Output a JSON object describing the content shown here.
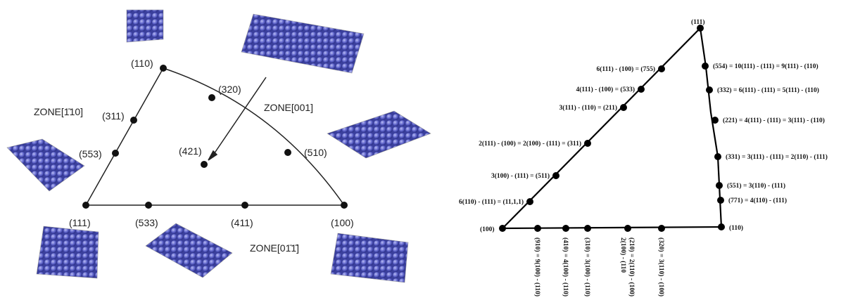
{
  "left": {
    "vertices": [
      "(110)",
      "(111)",
      "(100)"
    ],
    "points": [
      "(320)",
      "(311)",
      "(553)",
      "(510)",
      "(421)",
      "(533)",
      "(411)"
    ],
    "zones": [
      "ZONE[1̄10]",
      "ZONE[001]",
      "ZONE[01̄1̄]"
    ]
  },
  "right": {
    "vertices": [
      "(111)",
      "(100)",
      "(110)"
    ],
    "left_edge": [
      "6(110) - (111) = (11,1,1)",
      "3(100) - (111) = (511)",
      "2(111) - (100) = 2(100) - (111) = (311)",
      "3(111) - (110) = (211)",
      "4(111) - (100) = (533)",
      "6(111) - (100) = (755)"
    ],
    "right_edge": [
      "(554) = 10(111) - (111) = 9(111) - (110)",
      "(332) = 6(111) - (111) = 5(111) - (110)",
      "(221) = 4(111) - (111) = 3(111) - (110)",
      "(331) = 3(111) - (111) = 2(110) - (111)",
      "(551) = 3(110) - (111)",
      "(771) = 4(110) - (111)"
    ],
    "bottom_edge": [
      "(910) = 9(100) - (110)",
      "(410) = 4(100) - (110)",
      "(310) = 3(100) - (110)",
      "(210) = 2(110) - (100)",
      "2(100) - (110",
      "(320) = 3(110) - (100)"
    ]
  }
}
